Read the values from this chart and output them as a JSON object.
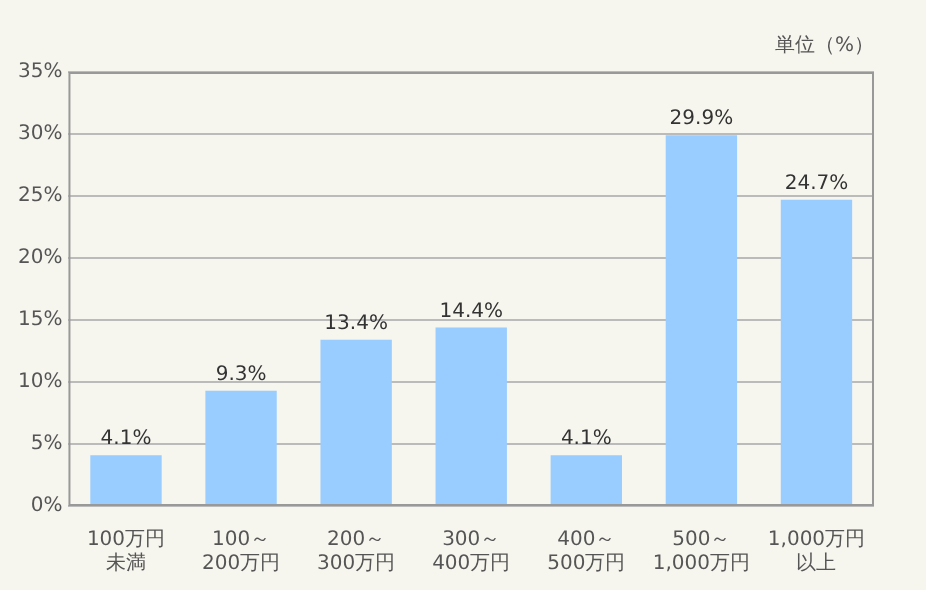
{
  "chart_data": {
    "type": "bar",
    "categories": [
      "100万円未満",
      "100～\n200万円",
      "200～\n300万円",
      "300～\n400万円",
      "400～\n500万円",
      "500～\n1,000万円",
      "1,000万円以上"
    ],
    "values": [
      4.1,
      9.3,
      13.4,
      14.4,
      4.1,
      29.9,
      24.7
    ],
    "value_labels": [
      "4.1%",
      "9.3%",
      "13.4%",
      "14.4%",
      "4.1%",
      "29.9%",
      "24.7%"
    ],
    "color": "#99ccff",
    "ylim": [
      0,
      35
    ],
    "yticks": [
      {
        "value": 0,
        "label": "0%"
      },
      {
        "value": 5,
        "label": "5%"
      },
      {
        "value": 10,
        "label": "10%"
      },
      {
        "value": 15,
        "label": "15%"
      },
      {
        "value": 20,
        "label": "20%"
      },
      {
        "value": 25,
        "label": "25%"
      },
      {
        "value": 30,
        "label": "30%"
      },
      {
        "value": 35,
        "label": "35%"
      }
    ],
    "grid": "y",
    "annotations": [
      "単位（%）"
    ]
  }
}
